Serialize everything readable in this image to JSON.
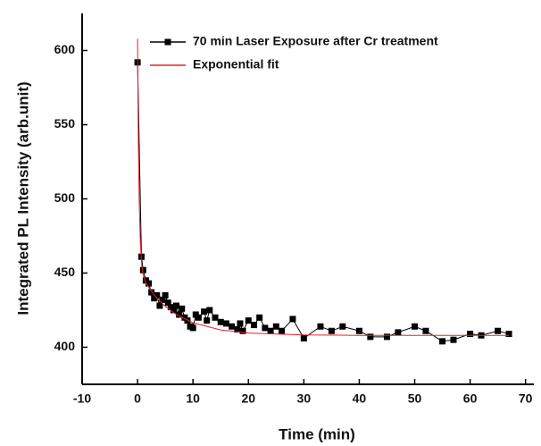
{
  "chart_data": {
    "type": "line",
    "x_label": "Time (min)",
    "y_label": "Integrated PL Intensity (arb.unit)",
    "xlim": [
      -10,
      71.5
    ],
    "ylim": [
      375,
      625
    ],
    "xticks": [
      -10,
      0,
      10,
      20,
      30,
      40,
      50,
      60,
      70
    ],
    "yticks": [
      400,
      450,
      500,
      550,
      600
    ],
    "grid": false,
    "legend": "upper right",
    "series": [
      {
        "name": "70 min Laser Exposure after Cr treatment",
        "color": "#000000",
        "marker": "square",
        "x": [
          0,
          0.7,
          1,
          1.5,
          2,
          2.5,
          3,
          3.5,
          4,
          4.5,
          5,
          5.5,
          6,
          6.5,
          7,
          7.5,
          8,
          8.5,
          9,
          9.5,
          10,
          10.5,
          11,
          12,
          12.5,
          13,
          14,
          15,
          16,
          17,
          18,
          18.5,
          19,
          20,
          21,
          22,
          23,
          24,
          25,
          26,
          28,
          30,
          33,
          35,
          37,
          40,
          42,
          45,
          47,
          50,
          52,
          55,
          57,
          60,
          62,
          65,
          67
        ],
        "values": [
          592,
          461,
          452,
          445,
          443,
          437,
          433,
          435,
          428,
          432,
          435,
          430,
          427,
          425,
          428,
          422,
          426,
          420,
          418,
          414,
          413,
          422,
          420,
          424,
          418,
          425,
          420,
          417,
          416,
          414,
          412,
          416,
          411,
          418,
          415,
          420,
          413,
          411,
          414,
          411,
          419,
          406,
          414,
          411,
          414,
          411,
          407,
          407,
          410,
          414,
          411,
          404,
          405,
          409,
          408,
          411,
          409
        ]
      },
      {
        "name": "Exponential fit",
        "color": "#e8202a",
        "marker": "none",
        "x": [
          0,
          0.1,
          0.2,
          0.3,
          0.5,
          0.75,
          1,
          1.5,
          2,
          3,
          4,
          5,
          7,
          10,
          15,
          20,
          30,
          40,
          50,
          60,
          67
        ],
        "values": [
          608,
          556.2,
          521.1,
          497.5,
          470.4,
          455.4,
          448.9,
          443.4,
          440.3,
          435.3,
          431.1,
          427.6,
          422,
          416.5,
          411.7,
          409.6,
          408.3,
          408,
          408,
          408,
          408
        ]
      }
    ]
  }
}
